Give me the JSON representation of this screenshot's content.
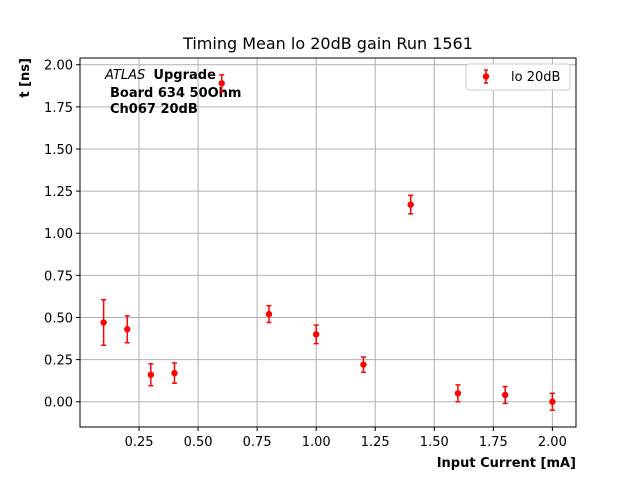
{
  "chart_data": {
    "type": "scatter",
    "title": "Timing Mean lo 20dB gain Run 1561",
    "xlabel": "Input Current [mA]",
    "ylabel": "t [ns]",
    "xlim": [
      0.0,
      2.1
    ],
    "ylim": [
      -0.15,
      2.04
    ],
    "grid": true,
    "legend_position": "top-right",
    "x_ticks": [
      "0.25",
      "0.50",
      "0.75",
      "1.00",
      "1.25",
      "1.50",
      "1.75",
      "2.00"
    ],
    "y_ticks": [
      "0.00",
      "0.25",
      "0.50",
      "0.75",
      "1.00",
      "1.25",
      "1.50",
      "1.75",
      "2.00"
    ],
    "annotation": {
      "atlas": "ATLAS",
      "upgrade": "Upgrade",
      "line2": "Board 634 50Ohm",
      "line3": "Ch067 20dB"
    },
    "series": [
      {
        "name": "lo 20dB",
        "color": "#ff0000",
        "x": [
          0.1,
          0.2,
          0.3,
          0.4,
          0.6,
          0.8,
          1.0,
          1.2,
          1.4,
          1.6,
          1.8,
          2.0
        ],
        "y": [
          0.47,
          0.43,
          0.16,
          0.17,
          1.89,
          0.52,
          0.4,
          0.22,
          1.17,
          0.05,
          0.04,
          0.0
        ],
        "err": [
          0.135,
          0.08,
          0.065,
          0.06,
          0.05,
          0.05,
          0.055,
          0.045,
          0.055,
          0.05,
          0.05,
          0.05
        ]
      }
    ]
  }
}
